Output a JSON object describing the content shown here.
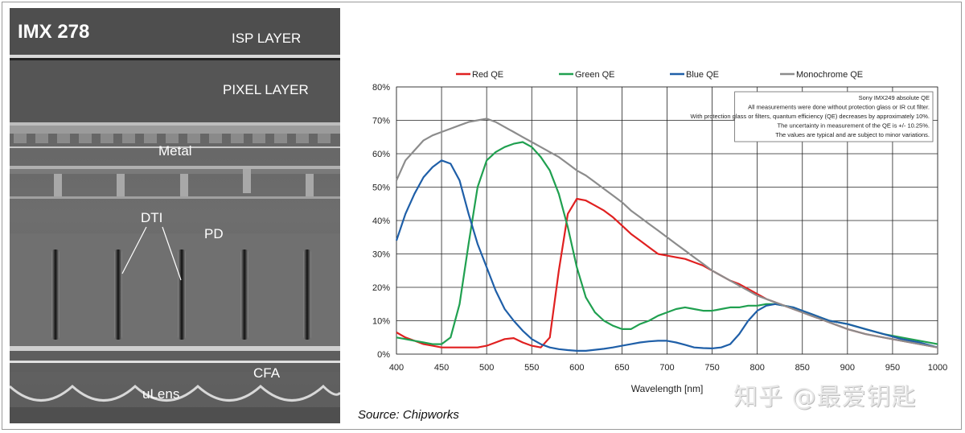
{
  "sem_image": {
    "title": "IMX 278",
    "labels": {
      "isp_layer": "ISP LAYER",
      "pixel_layer": "PIXEL LAYER",
      "metal": "Metal",
      "dti": "DTI",
      "pd": "PD",
      "cfa": "CFA",
      "ulens": "uLens"
    }
  },
  "source": "Source: Chipworks",
  "watermark": "知乎 @最爱钥匙",
  "chart_data": {
    "type": "line",
    "title": "",
    "xlabel": "Wavelength [nm]",
    "ylabel": "",
    "xlim": [
      400,
      1000
    ],
    "ylim": [
      0,
      80
    ],
    "x_ticks": [
      400,
      450,
      500,
      550,
      600,
      650,
      700,
      750,
      800,
      850,
      900,
      950,
      1000
    ],
    "y_ticks": [
      "0%",
      "10%",
      "20%",
      "30%",
      "40%",
      "50%",
      "60%",
      "70%",
      "80%"
    ],
    "grid": true,
    "legend_position": "top",
    "annotation": [
      "Sony IMX249 absolute QE",
      "All measurements were done without protection glass or IR cut filter.",
      "With protection glass or filters, quantum efficiency (QE) decreases by approximately 10%.",
      "The uncertainty in measurement of the QE is +/- 10.25%.",
      "The values are typical and are subject to minor variations."
    ],
    "series": [
      {
        "name": "Red QE",
        "color": "#e02020",
        "x": [
          400,
          410,
          420,
          430,
          440,
          450,
          460,
          470,
          480,
          490,
          500,
          510,
          520,
          530,
          540,
          550,
          560,
          570,
          580,
          590,
          600,
          610,
          620,
          630,
          640,
          650,
          660,
          670,
          680,
          690,
          700,
          710,
          720,
          730,
          740,
          750,
          760,
          770,
          780,
          790,
          800,
          810,
          820,
          830,
          840,
          850,
          860,
          870,
          880,
          890,
          900,
          920,
          940,
          960,
          980,
          1000
        ],
        "y": [
          6.5,
          5,
          4,
          3,
          2.5,
          2,
          2,
          2,
          2,
          2,
          2.5,
          3.5,
          4.5,
          4.8,
          3.5,
          2.5,
          2,
          5,
          25,
          42,
          46.5,
          46,
          44.5,
          43,
          41,
          38.5,
          36,
          34,
          32,
          30,
          29.5,
          29,
          28.5,
          27.5,
          26.5,
          25,
          23.5,
          22,
          21,
          19.5,
          18,
          16.5,
          15.5,
          14.5,
          13.5,
          12.5,
          11.5,
          10.5,
          9.5,
          8.5,
          7.5,
          6,
          5,
          4,
          3,
          2
        ]
      },
      {
        "name": "Green QE",
        "color": "#20a050",
        "x": [
          400,
          410,
          420,
          430,
          440,
          450,
          460,
          470,
          480,
          490,
          500,
          510,
          520,
          530,
          540,
          550,
          560,
          570,
          580,
          590,
          600,
          610,
          620,
          630,
          640,
          650,
          660,
          670,
          680,
          690,
          700,
          710,
          720,
          730,
          740,
          750,
          760,
          770,
          780,
          790,
          800,
          810,
          820,
          830,
          840,
          850,
          860,
          870,
          880,
          890,
          900,
          920,
          940,
          960,
          980,
          1000
        ],
        "y": [
          5,
          4.5,
          4,
          3.5,
          3,
          3,
          5,
          15,
          33,
          50,
          58,
          60.5,
          62,
          63,
          63.5,
          62,
          59,
          55,
          48,
          38,
          26,
          17,
          12.5,
          10,
          8.5,
          7.5,
          7.5,
          9,
          10,
          11.5,
          12.5,
          13.5,
          14,
          13.5,
          13,
          13,
          13.5,
          14,
          14,
          14.5,
          14.5,
          15,
          15,
          14.5,
          14,
          13,
          12,
          11,
          10,
          9.5,
          9,
          7.5,
          6,
          5,
          4,
          3
        ]
      },
      {
        "name": "Blue QE",
        "color": "#1f5fa8",
        "x": [
          400,
          410,
          420,
          430,
          440,
          450,
          460,
          470,
          480,
          490,
          500,
          510,
          520,
          530,
          540,
          550,
          560,
          570,
          580,
          590,
          600,
          610,
          620,
          630,
          640,
          650,
          660,
          670,
          680,
          690,
          700,
          710,
          720,
          730,
          740,
          750,
          760,
          770,
          780,
          790,
          800,
          810,
          820,
          830,
          840,
          850,
          860,
          870,
          880,
          890,
          900,
          920,
          940,
          960,
          980,
          1000
        ],
        "y": [
          34,
          42,
          48,
          53,
          56,
          58,
          57,
          52,
          42,
          33,
          26,
          19,
          13.5,
          10,
          7,
          4.5,
          3,
          2,
          1.5,
          1.2,
          1,
          1,
          1.3,
          1.6,
          2,
          2.5,
          3,
          3.5,
          3.8,
          4,
          4,
          3.5,
          2.8,
          2,
          1.8,
          1.7,
          2,
          3,
          6,
          10,
          13,
          14.5,
          15,
          14.5,
          14,
          13,
          12,
          11,
          10,
          9.5,
          9,
          7.5,
          6,
          4.5,
          3.5,
          2
        ]
      },
      {
        "name": "Monochrome QE",
        "color": "#8c8c8c",
        "x": [
          400,
          410,
          420,
          430,
          440,
          450,
          460,
          470,
          480,
          490,
          500,
          510,
          520,
          530,
          540,
          550,
          560,
          570,
          580,
          590,
          600,
          610,
          620,
          630,
          640,
          650,
          660,
          670,
          680,
          690,
          700,
          710,
          720,
          730,
          740,
          750,
          760,
          770,
          780,
          790,
          800,
          810,
          820,
          830,
          840,
          850,
          860,
          870,
          880,
          890,
          900,
          920,
          940,
          960,
          980,
          1000
        ],
        "y": [
          52,
          58,
          61,
          64,
          65.5,
          66.5,
          67.5,
          68.5,
          69.5,
          70,
          70.5,
          69.5,
          68,
          66.5,
          65,
          63.5,
          62,
          60.5,
          59,
          57,
          55,
          53.5,
          51.5,
          49.5,
          47.5,
          45.5,
          43,
          41,
          39,
          37,
          35,
          33,
          31,
          29,
          27,
          25,
          23.5,
          22,
          20.5,
          19,
          17.5,
          16.5,
          15.5,
          14.5,
          13.5,
          12.5,
          11.5,
          10.5,
          9.5,
          8.5,
          7.5,
          6,
          5,
          4,
          3,
          2
        ]
      }
    ]
  }
}
